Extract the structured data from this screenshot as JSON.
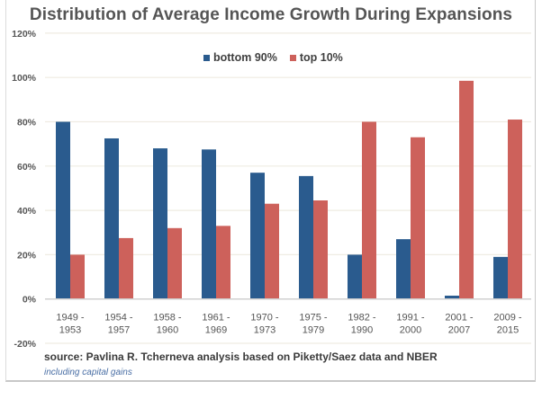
{
  "chart_data": {
    "type": "bar",
    "title": "Distribution of Average Income Growth During Expansions",
    "xlabel": "",
    "ylabel": "",
    "ylim": [
      -20,
      120
    ],
    "yticks": [
      -20,
      0,
      20,
      40,
      60,
      80,
      100,
      120
    ],
    "ytick_labels": [
      "-20%",
      "0%",
      "20%",
      "40%",
      "60%",
      "80%",
      "100%",
      "120%"
    ],
    "grid": true,
    "legend_position": "top-center",
    "categories": [
      [
        "1949 -",
        "1953"
      ],
      [
        "1954 -",
        "1957"
      ],
      [
        "1958 -",
        "1960"
      ],
      [
        "1961 -",
        "1969"
      ],
      [
        "1970 -",
        "1973"
      ],
      [
        "1975 -",
        "1979"
      ],
      [
        "1982 -",
        "1990"
      ],
      [
        "1991 -",
        "2000"
      ],
      [
        "2001 -",
        "2007"
      ],
      [
        "2009 -",
        "2015"
      ]
    ],
    "series": [
      {
        "name": "bottom 90%",
        "color": "#2a5b8e",
        "values": [
          80,
          72.5,
          68,
          67.5,
          57,
          55.5,
          20,
          27,
          1.5,
          19
        ]
      },
      {
        "name": "top 10%",
        "color": "#cd615b",
        "values": [
          20,
          27.5,
          32,
          33,
          43,
          44.5,
          80,
          73,
          98.5,
          81
        ]
      }
    ],
    "source": "source: Pavlina R. Tcherneva analysis based on Piketty/Saez data and NBER",
    "note": "including capital gains"
  },
  "colors": {
    "bottom": "#2a5b8e",
    "top": "#cd615b",
    "grid": "#efece2",
    "axis": "#d0d0d0"
  }
}
